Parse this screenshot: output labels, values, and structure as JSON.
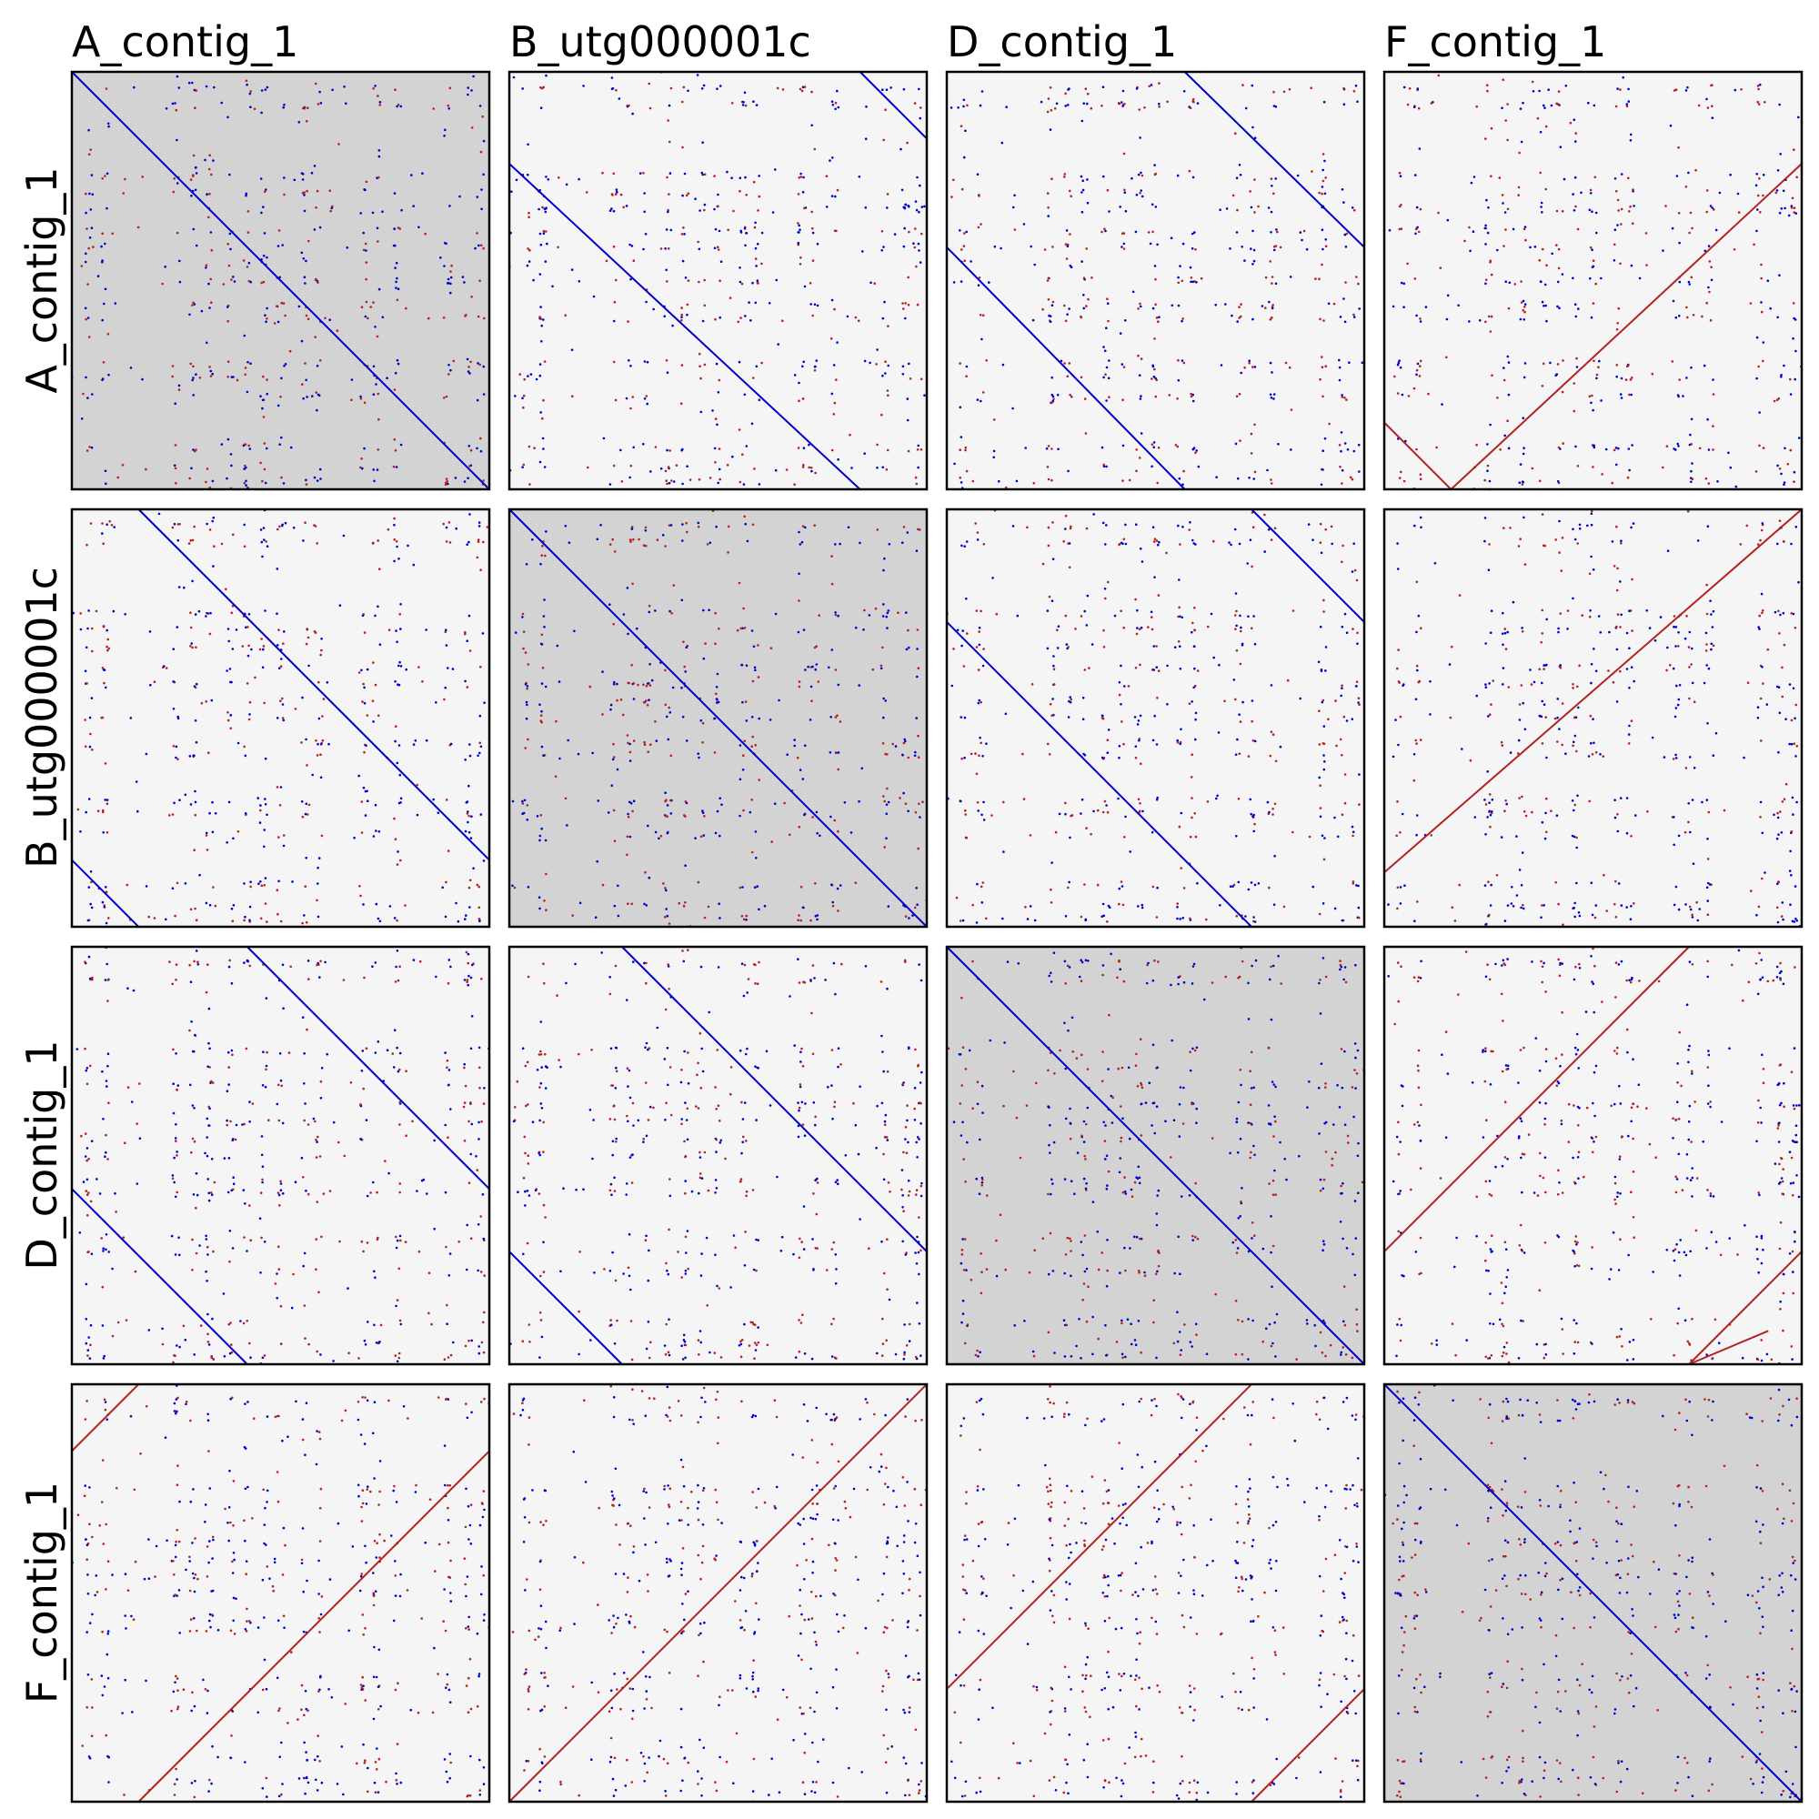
{
  "chart_data": {
    "type": "scatter",
    "description_kind": "pairwise dot-plot matrix",
    "sequences": [
      "A_contig_1",
      "B_utg000001c",
      "D_contig_1",
      "F_contig_1"
    ],
    "column_labels": [
      "A_contig_1",
      "B_utg000001c",
      "D_contig_1",
      "F_contig_1"
    ],
    "row_labels": [
      "A_contig_1",
      "B_utg000001c",
      "D_contig_1",
      "F_contig_1"
    ],
    "self_panel_background": "#d3d3d3",
    "pair_panel_background": "#f5f5f5",
    "forward_color": "#0000cc",
    "reverse_color": "#b22222",
    "axis_range": [
      0,
      1
    ],
    "grid": false,
    "legend": "none",
    "diagonals": [
      {
        "row": 0,
        "col": 0,
        "orientation": "forward",
        "segments": [
          [
            [
              0,
              0
            ],
            [
              1,
              1
            ]
          ]
        ]
      },
      {
        "row": 0,
        "col": 1,
        "orientation": "forward",
        "segments": [
          [
            [
              0,
              0.22
            ],
            [
              0.84,
              1
            ]
          ],
          [
            [
              0.84,
              0
            ],
            [
              1,
              0.16
            ]
          ]
        ]
      },
      {
        "row": 0,
        "col": 2,
        "orientation": "forward",
        "segments": [
          [
            [
              0,
              0.42
            ],
            [
              0.57,
              1
            ]
          ],
          [
            [
              0.57,
              0
            ],
            [
              1,
              0.42
            ]
          ]
        ]
      },
      {
        "row": 0,
        "col": 3,
        "orientation": "reverse",
        "segments": [
          [
            [
              0.16,
              1
            ],
            [
              1,
              0.22
            ]
          ],
          [
            [
              0,
              0.84
            ],
            [
              0.16,
              1
            ]
          ]
        ]
      },
      {
        "row": 1,
        "col": 0,
        "orientation": "forward",
        "segments": [
          [
            [
              0.16,
              0
            ],
            [
              1,
              0.84
            ]
          ],
          [
            [
              0,
              0.84
            ],
            [
              0.16,
              1
            ]
          ]
        ]
      },
      {
        "row": 1,
        "col": 1,
        "orientation": "forward",
        "segments": [
          [
            [
              0,
              0
            ],
            [
              1,
              1
            ]
          ]
        ]
      },
      {
        "row": 1,
        "col": 2,
        "orientation": "forward",
        "segments": [
          [
            [
              0,
              0.27
            ],
            [
              0.73,
              1
            ]
          ],
          [
            [
              0.73,
              0
            ],
            [
              1,
              0.27
            ]
          ]
        ]
      },
      {
        "row": 1,
        "col": 3,
        "orientation": "reverse",
        "segments": [
          [
            [
              0,
              0.87
            ],
            [
              1,
              0
            ]
          ]
        ]
      },
      {
        "row": 2,
        "col": 0,
        "orientation": "forward",
        "segments": [
          [
            [
              0.42,
              0
            ],
            [
              1,
              0.58
            ]
          ],
          [
            [
              0,
              0.58
            ],
            [
              0.42,
              1
            ]
          ]
        ]
      },
      {
        "row": 2,
        "col": 1,
        "orientation": "forward",
        "segments": [
          [
            [
              0.27,
              0
            ],
            [
              1,
              0.73
            ]
          ],
          [
            [
              0,
              0.73
            ],
            [
              0.27,
              1
            ]
          ]
        ]
      },
      {
        "row": 2,
        "col": 2,
        "orientation": "forward",
        "segments": [
          [
            [
              0,
              0
            ],
            [
              1,
              1
            ]
          ]
        ]
      },
      {
        "row": 2,
        "col": 3,
        "orientation": "reverse",
        "segments": [
          [
            [
              0,
              0.73
            ],
            [
              0.73,
              0
            ]
          ],
          [
            [
              0.73,
              1
            ],
            [
              0.92,
              0.92
            ]
          ],
          [
            [
              0.73,
              1
            ],
            [
              1,
              0.73
            ]
          ]
        ]
      },
      {
        "row": 3,
        "col": 0,
        "orientation": "reverse",
        "segments": [
          [
            [
              0.16,
              1
            ],
            [
              1,
              0.16
            ]
          ],
          [
            [
              0,
              0.16
            ],
            [
              0.16,
              0
            ]
          ]
        ]
      },
      {
        "row": 3,
        "col": 1,
        "orientation": "reverse",
        "segments": [
          [
            [
              0,
              1
            ],
            [
              1,
              0
            ]
          ]
        ]
      },
      {
        "row": 3,
        "col": 2,
        "orientation": "reverse",
        "segments": [
          [
            [
              0,
              0.73
            ],
            [
              0.73,
              0
            ]
          ],
          [
            [
              0.73,
              1
            ],
            [
              1,
              0.73
            ]
          ]
        ]
      },
      {
        "row": 3,
        "col": 3,
        "orientation": "forward",
        "segments": [
          [
            [
              0,
              0
            ],
            [
              1,
              1
            ]
          ]
        ]
      }
    ]
  }
}
